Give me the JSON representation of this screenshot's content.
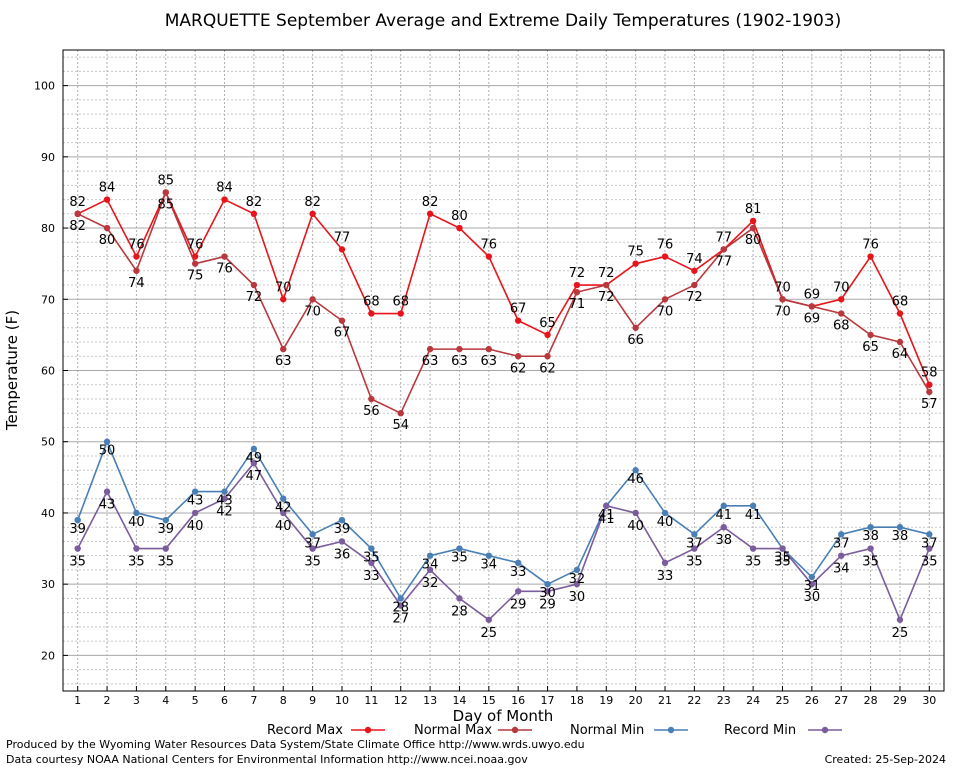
{
  "chart_data": {
    "type": "line",
    "title": "MARQUETTE September Average and Extreme Daily Temperatures (1902-1903)",
    "xlabel": "Day of Month",
    "ylabel": "Temperature (F)",
    "x": [
      1,
      2,
      3,
      4,
      5,
      6,
      7,
      8,
      9,
      10,
      11,
      12,
      13,
      14,
      15,
      16,
      17,
      18,
      19,
      20,
      21,
      22,
      23,
      24,
      25,
      26,
      27,
      28,
      29,
      30
    ],
    "xlim": [
      0.5,
      30.5
    ],
    "ylim": [
      15,
      105
    ],
    "yticks": [
      20,
      30,
      40,
      50,
      60,
      70,
      80,
      90,
      100
    ],
    "grid": true,
    "legend": "bottom",
    "series": [
      {
        "name": "Record Max",
        "color": "#e8141b",
        "values": [
          82,
          84,
          76,
          85,
          76,
          84,
          82,
          70,
          82,
          77,
          68,
          68,
          82,
          80,
          76,
          67,
          65,
          72,
          72,
          75,
          76,
          74,
          77,
          81,
          70,
          69,
          70,
          76,
          68,
          58
        ]
      },
      {
        "name": "Normal Max",
        "color": "#b9383d",
        "values": [
          82,
          80,
          74,
          85,
          75,
          76,
          72,
          63,
          70,
          67,
          56,
          54,
          63,
          63,
          63,
          62,
          62,
          71,
          72,
          66,
          70,
          72,
          77,
          80,
          70,
          69,
          68,
          65,
          64,
          57
        ]
      },
      {
        "name": "Normal Min",
        "color": "#4a7fb5",
        "values": [
          39,
          50,
          40,
          39,
          43,
          43,
          49,
          42,
          37,
          39,
          35,
          28,
          34,
          35,
          34,
          33,
          30,
          32,
          41,
          46,
          40,
          37,
          41,
          41,
          35,
          31,
          37,
          38,
          38,
          37
        ]
      },
      {
        "name": "Record Min",
        "color": "#7b5c9c",
        "values": [
          35,
          43,
          35,
          35,
          40,
          42,
          47,
          40,
          35,
          36,
          33,
          27,
          32,
          28,
          25,
          29,
          29,
          30,
          41,
          40,
          33,
          35,
          38,
          35,
          35,
          30,
          34,
          35,
          25,
          35
        ]
      }
    ]
  },
  "footer": {
    "produced_by": "Produced by the Wyoming Water Resources Data System/State Climate Office http://www.wrds.uwyo.edu",
    "courtesy": "Data courtesy NOAA National Centers for Environmental Information http://www.ncei.noaa.gov",
    "created": "Created: 25-Sep-2024"
  }
}
